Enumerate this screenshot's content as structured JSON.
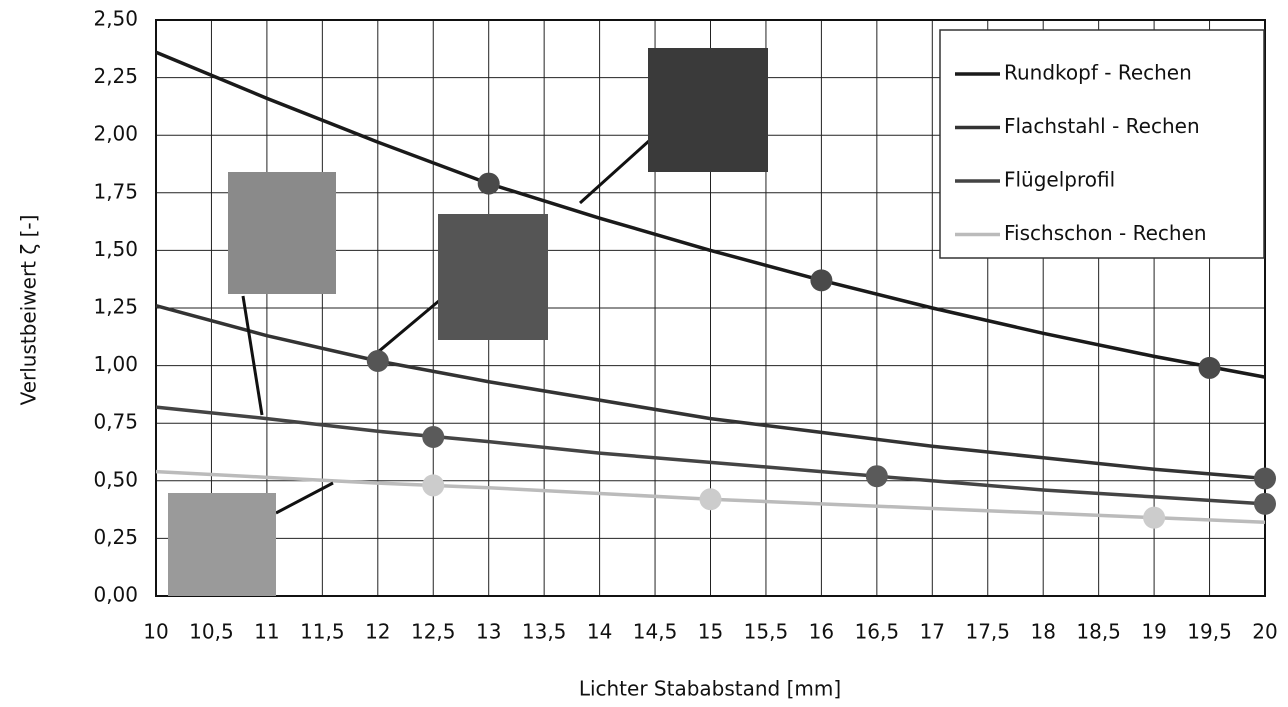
{
  "chart_data": {
    "type": "line",
    "x_label": "Lichter Stababstand [mm]",
    "y_label": "Verlustbeiwert ζ [-]",
    "xlim": [
      10,
      20
    ],
    "ylim": [
      0,
      2.5
    ],
    "xticks": [
      10,
      {
        "value": 10.5,
        "label": "10,5"
      },
      11,
      {
        "value": 11.5,
        "label": "11,5"
      },
      12,
      {
        "value": 12.5,
        "label": "12,5"
      },
      13,
      {
        "value": 13.5,
        "label": "13,5"
      },
      14,
      {
        "value": 14.5,
        "label": "14,5"
      },
      15,
      {
        "value": 15.5,
        "label": "15,5"
      },
      16,
      {
        "value": 16.5,
        "label": "16,5"
      },
      17,
      {
        "value": 17.5,
        "label": "17,5"
      },
      18,
      {
        "value": 18.5,
        "label": "18,5"
      },
      19,
      {
        "value": 19.5,
        "label": "19,5"
      },
      20
    ],
    "yticks": [
      {
        "value": 0,
        "label": "0,00"
      },
      {
        "value": 0.25,
        "label": "0,25"
      },
      {
        "value": 0.5,
        "label": "0,50"
      },
      {
        "value": 0.75,
        "label": "0,75"
      },
      {
        "value": 1,
        "label": "1,00"
      },
      {
        "value": 1.25,
        "label": "1,25"
      },
      {
        "value": 1.5,
        "label": "1,50"
      },
      {
        "value": 1.75,
        "label": "1,75"
      },
      {
        "value": 2,
        "label": "2,00"
      },
      {
        "value": 2.25,
        "label": "2,25"
      },
      {
        "value": 2.5,
        "label": "2,50"
      }
    ],
    "grid": true,
    "legend": "top-right",
    "series": [
      {
        "name": "Rundkopf - Rechen",
        "color": "#1a1a1a",
        "marker_color": "#4a4a4a",
        "x": [
          10,
          11,
          12,
          13,
          14,
          15,
          16,
          17,
          18,
          19,
          20
        ],
        "values": [
          2.36,
          2.16,
          1.97,
          1.79,
          1.64,
          1.5,
          1.37,
          1.25,
          1.14,
          1.04,
          0.95
        ],
        "markers": {
          "x": [
            13,
            16,
            19.5
          ],
          "values": [
            1.79,
            1.37,
            0.99
          ]
        }
      },
      {
        "name": "Flachstahl - Rechen",
        "color": "#333333",
        "marker_color": "#555555",
        "x": [
          10,
          11,
          12,
          13,
          14,
          15,
          16,
          17,
          18,
          19,
          20
        ],
        "values": [
          1.26,
          1.13,
          1.02,
          0.93,
          0.85,
          0.77,
          0.71,
          0.65,
          0.6,
          0.55,
          0.51
        ],
        "markers": {
          "x": [
            12,
            20
          ],
          "values": [
            1.02,
            0.51
          ]
        }
      },
      {
        "name": "Flügelprofil",
        "color": "#444444",
        "marker_color": "#5a5a5a",
        "x": [
          10,
          11,
          12,
          13,
          14,
          15,
          16,
          17,
          18,
          19,
          20
        ],
        "values": [
          0.82,
          0.77,
          0.715,
          0.67,
          0.62,
          0.58,
          0.54,
          0.5,
          0.46,
          0.43,
          0.4
        ],
        "markers": {
          "x": [
            12.5,
            16.5,
            20
          ],
          "values": [
            0.69,
            0.52,
            0.4
          ]
        }
      },
      {
        "name": "Fischschon - Rechen",
        "color": "#bbbbbb",
        "marker_color": "#cccccc",
        "x": [
          10,
          11,
          12,
          13,
          14,
          15,
          16,
          17,
          18,
          19,
          20
        ],
        "values": [
          0.54,
          0.515,
          0.49,
          0.47,
          0.445,
          0.42,
          0.4,
          0.38,
          0.36,
          0.34,
          0.32
        ],
        "markers": {
          "x": [
            12.5,
            15,
            19
          ],
          "values": [
            0.48,
            0.42,
            0.34
          ]
        }
      }
    ]
  }
}
